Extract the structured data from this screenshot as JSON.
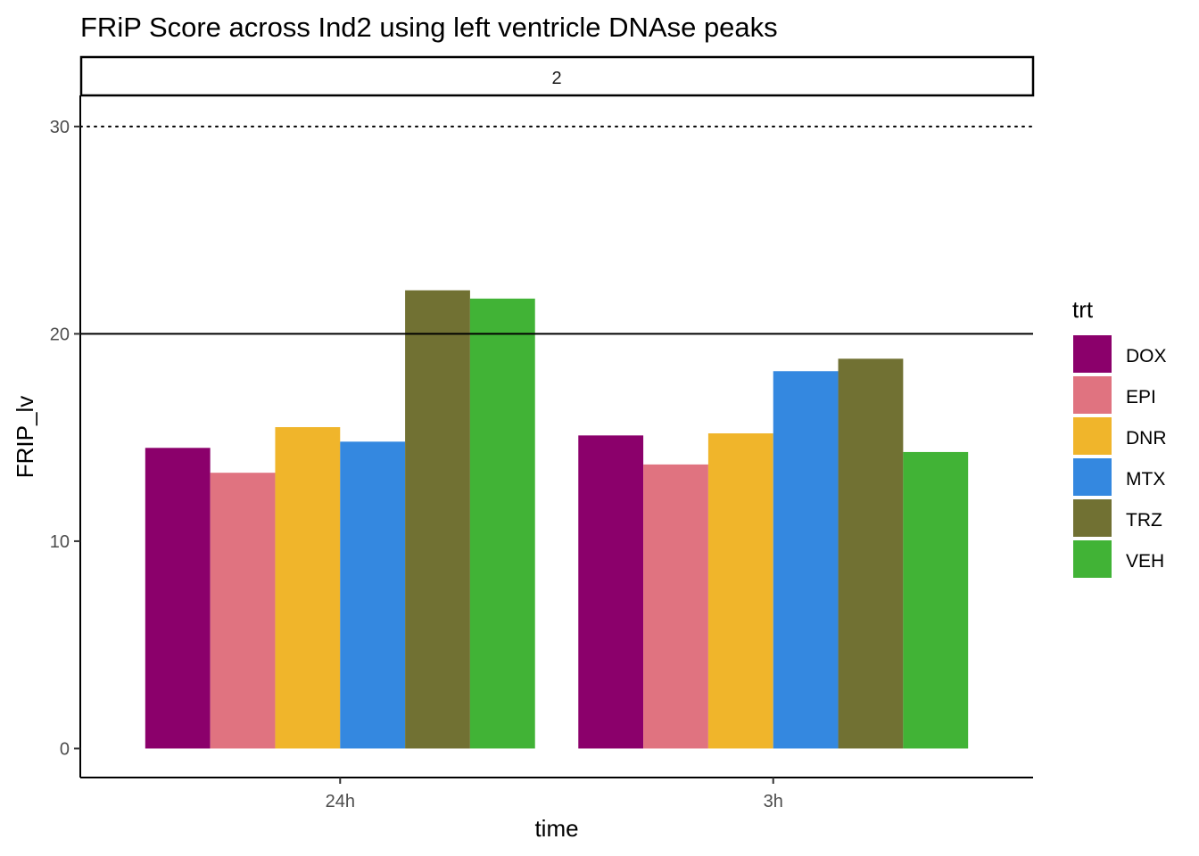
{
  "chart_data": {
    "type": "bar",
    "title": "FRiP Score across Ind2  using left ventricle DNAse peaks",
    "facet_label": "2",
    "xlabel": "time",
    "ylabel": "FRIP_lv",
    "categories": [
      "24h",
      "3h"
    ],
    "ylim": [
      -1.4,
      31.5
    ],
    "yticks": [
      0,
      10,
      20,
      30
    ],
    "ytick_labels": [
      "0",
      "10",
      "20",
      "30"
    ],
    "reference_lines": [
      {
        "value": 20,
        "style": "solid"
      },
      {
        "value": 30,
        "style": "dotted"
      }
    ],
    "legend": {
      "title": "trt",
      "placement": "right"
    },
    "series": [
      {
        "name": "DOX",
        "color": "#8B006B",
        "values": [
          14.5,
          15.1
        ]
      },
      {
        "name": "EPI",
        "color": "#E07380",
        "values": [
          13.3,
          13.7
        ]
      },
      {
        "name": "DNR",
        "color": "#F0B52B",
        "values": [
          15.5,
          15.2
        ]
      },
      {
        "name": "MTX",
        "color": "#3488E0",
        "values": [
          14.8,
          18.2
        ]
      },
      {
        "name": "TRZ",
        "color": "#717133",
        "values": [
          22.1,
          18.8
        ]
      },
      {
        "name": "VEH",
        "color": "#41B336",
        "values": [
          21.7,
          14.3
        ]
      }
    ],
    "grid": false
  }
}
